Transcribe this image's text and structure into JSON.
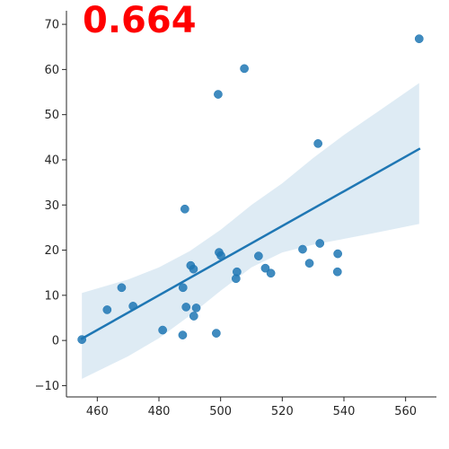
{
  "chart_data": {
    "type": "scatter",
    "title": "",
    "xlabel": "",
    "ylabel": "",
    "annotation": "0.664",
    "xlim": [
      450,
      570
    ],
    "ylim": [
      -12.5,
      73
    ],
    "x_ticks": [
      460,
      480,
      500,
      520,
      540,
      560
    ],
    "y_ticks": [
      -10,
      0,
      10,
      20,
      30,
      40,
      50,
      60,
      70
    ],
    "grid": false,
    "legend": "none",
    "colors": {
      "points": "#1f77b4",
      "line": "#1f77b4",
      "band": "#1f77b4",
      "annotation": "#ff0000"
    },
    "points": [
      {
        "x": 455,
        "y": 0.2
      },
      {
        "x": 463.2,
        "y": 6.8
      },
      {
        "x": 467.9,
        "y": 11.7
      },
      {
        "x": 471.6,
        "y": 7.6
      },
      {
        "x": 481.2,
        "y": 2.3
      },
      {
        "x": 487.7,
        "y": 1.2
      },
      {
        "x": 487.8,
        "y": 11.7
      },
      {
        "x": 488.4,
        "y": 29.1
      },
      {
        "x": 488.8,
        "y": 7.4
      },
      {
        "x": 490.3,
        "y": 16.6
      },
      {
        "x": 491.2,
        "y": 15.8
      },
      {
        "x": 491.3,
        "y": 5.4
      },
      {
        "x": 492.1,
        "y": 7.2
      },
      {
        "x": 498.6,
        "y": 1.6
      },
      {
        "x": 499.2,
        "y": 54.5
      },
      {
        "x": 499.5,
        "y": 19.5
      },
      {
        "x": 500.1,
        "y": 18.8
      },
      {
        "x": 505.0,
        "y": 13.7
      },
      {
        "x": 505.3,
        "y": 15.2
      },
      {
        "x": 507.7,
        "y": 60.2
      },
      {
        "x": 512.3,
        "y": 18.7
      },
      {
        "x": 514.5,
        "y": 16.0
      },
      {
        "x": 516.3,
        "y": 14.9
      },
      {
        "x": 526.6,
        "y": 20.2
      },
      {
        "x": 528.8,
        "y": 17.1
      },
      {
        "x": 531.6,
        "y": 43.6
      },
      {
        "x": 532.2,
        "y": 21.5
      },
      {
        "x": 537.9,
        "y": 15.2
      },
      {
        "x": 538.0,
        "y": 19.2
      },
      {
        "x": 564.4,
        "y": 66.8
      }
    ],
    "regression": {
      "x": [
        455,
        564.4
      ],
      "y": [
        0.4,
        42.4
      ]
    },
    "ci_band": {
      "x": [
        455,
        470,
        480,
        490,
        500,
        510,
        520,
        530,
        540,
        550,
        564.4
      ],
      "upper": [
        10.5,
        13.5,
        16.2,
        19.8,
        24.5,
        30.0,
        34.8,
        40.4,
        45.5,
        50.2,
        57.0
      ],
      "lower": [
        -8.5,
        -3.5,
        0.5,
        5.5,
        11.0,
        16.2,
        19.5,
        21.2,
        22.5,
        23.8,
        25.8
      ]
    }
  }
}
